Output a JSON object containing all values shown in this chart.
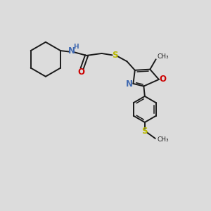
{
  "bg_color": "#dcdcdc",
  "bond_color": "#1a1a1a",
  "N_color": "#4169b0",
  "O_color": "#cc0000",
  "S_color": "#b8b800",
  "figsize": [
    3.0,
    3.0
  ],
  "dpi": 100,
  "xlim": [
    0,
    10
  ],
  "ylim": [
    0,
    10
  ]
}
